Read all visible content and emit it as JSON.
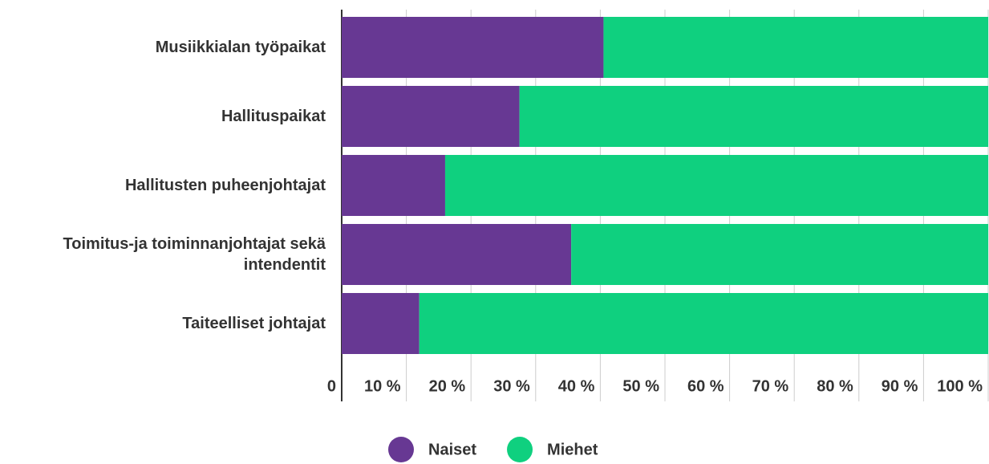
{
  "chart_data": {
    "type": "stacked-barh",
    "categories": [
      "Musiikkialan työpaikat",
      "Hallituspaikat",
      "Hallitusten puheenjohtajat",
      "Toimitus-ja toiminnanjohtajat sekä intendentit",
      "Taiteelliset johtajat"
    ],
    "series": [
      {
        "name": "Naiset",
        "color": "#673893",
        "values": [
          40.5,
          27.5,
          16,
          35.5,
          12
        ]
      },
      {
        "name": "Miehet",
        "color": "#0fd07f",
        "values": [
          59.5,
          72.5,
          84,
          64.5,
          88
        ]
      }
    ],
    "xlim": [
      0,
      100
    ],
    "xticks": [
      0,
      {
        "value": 10,
        "label": "10 %"
      },
      {
        "value": 20,
        "label": "20 %"
      },
      {
        "value": 30,
        "label": "30 %"
      },
      {
        "value": 40,
        "label": "40 %"
      },
      {
        "value": 50,
        "label": "50 %"
      },
      {
        "value": 60,
        "label": "60 %"
      },
      {
        "value": 70,
        "label": "70 %"
      },
      {
        "value": 80,
        "label": "80 %"
      },
      {
        "value": 90,
        "label": "90 %"
      },
      {
        "value": 100,
        "label": "100 %"
      }
    ],
    "grid": true
  }
}
